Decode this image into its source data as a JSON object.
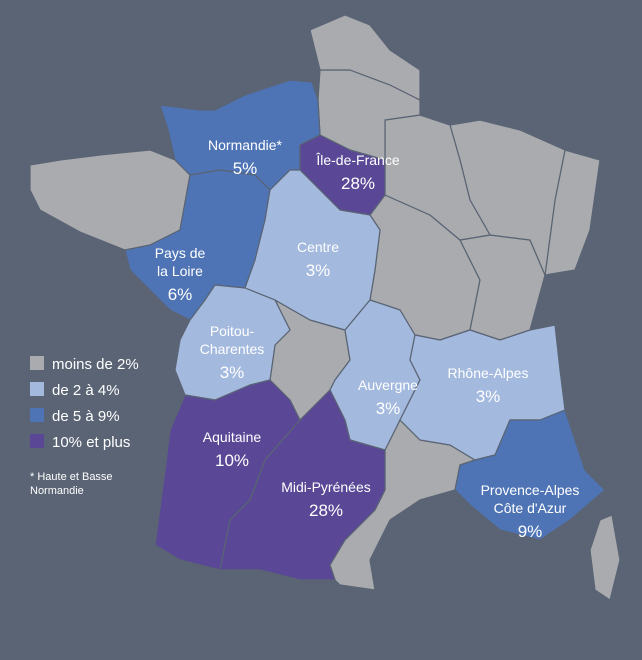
{
  "legend": [
    {
      "label": "moins de 2%",
      "color": "#a9abae"
    },
    {
      "label": "de 2 à 4%",
      "color": "#a3b9de"
    },
    {
      "label": "de 5 à 9%",
      "color": "#4e74b5"
    },
    {
      "label": "10% et plus",
      "color": "#5a4896"
    }
  ],
  "footnote": [
    "* Haute et Basse",
    "Normandie"
  ],
  "regions": [
    {
      "name_lines": [
        "Normandie*"
      ],
      "share": "5%",
      "color": "#4e74b5"
    },
    {
      "name_lines": [
        "Île-de-France"
      ],
      "share": "28%",
      "color": "#5a4896"
    },
    {
      "name_lines": [
        "Pays de",
        "la Loire"
      ],
      "share": "6%",
      "color": "#4e74b5"
    },
    {
      "name_lines": [
        "Centre"
      ],
      "share": "3%",
      "color": "#a3b9de"
    },
    {
      "name_lines": [
        "Poitou-",
        "Charentes"
      ],
      "share": "3%",
      "color": "#a3b9de"
    },
    {
      "name_lines": [
        "Auvergne"
      ],
      "share": "3%",
      "color": "#a3b9de"
    },
    {
      "name_lines": [
        "Rhône-Alpes"
      ],
      "share": "3%",
      "color": "#a3b9de"
    },
    {
      "name_lines": [
        "Aquitaine"
      ],
      "share": "10%",
      "color": "#5a4896"
    },
    {
      "name_lines": [
        "Midi-Pyrénées"
      ],
      "share": "28%",
      "color": "#5a4896"
    },
    {
      "name_lines": [
        "Provence-Alpes",
        "Côte d'Azur"
      ],
      "share": "9%",
      "color": "#4e74b5"
    }
  ]
}
